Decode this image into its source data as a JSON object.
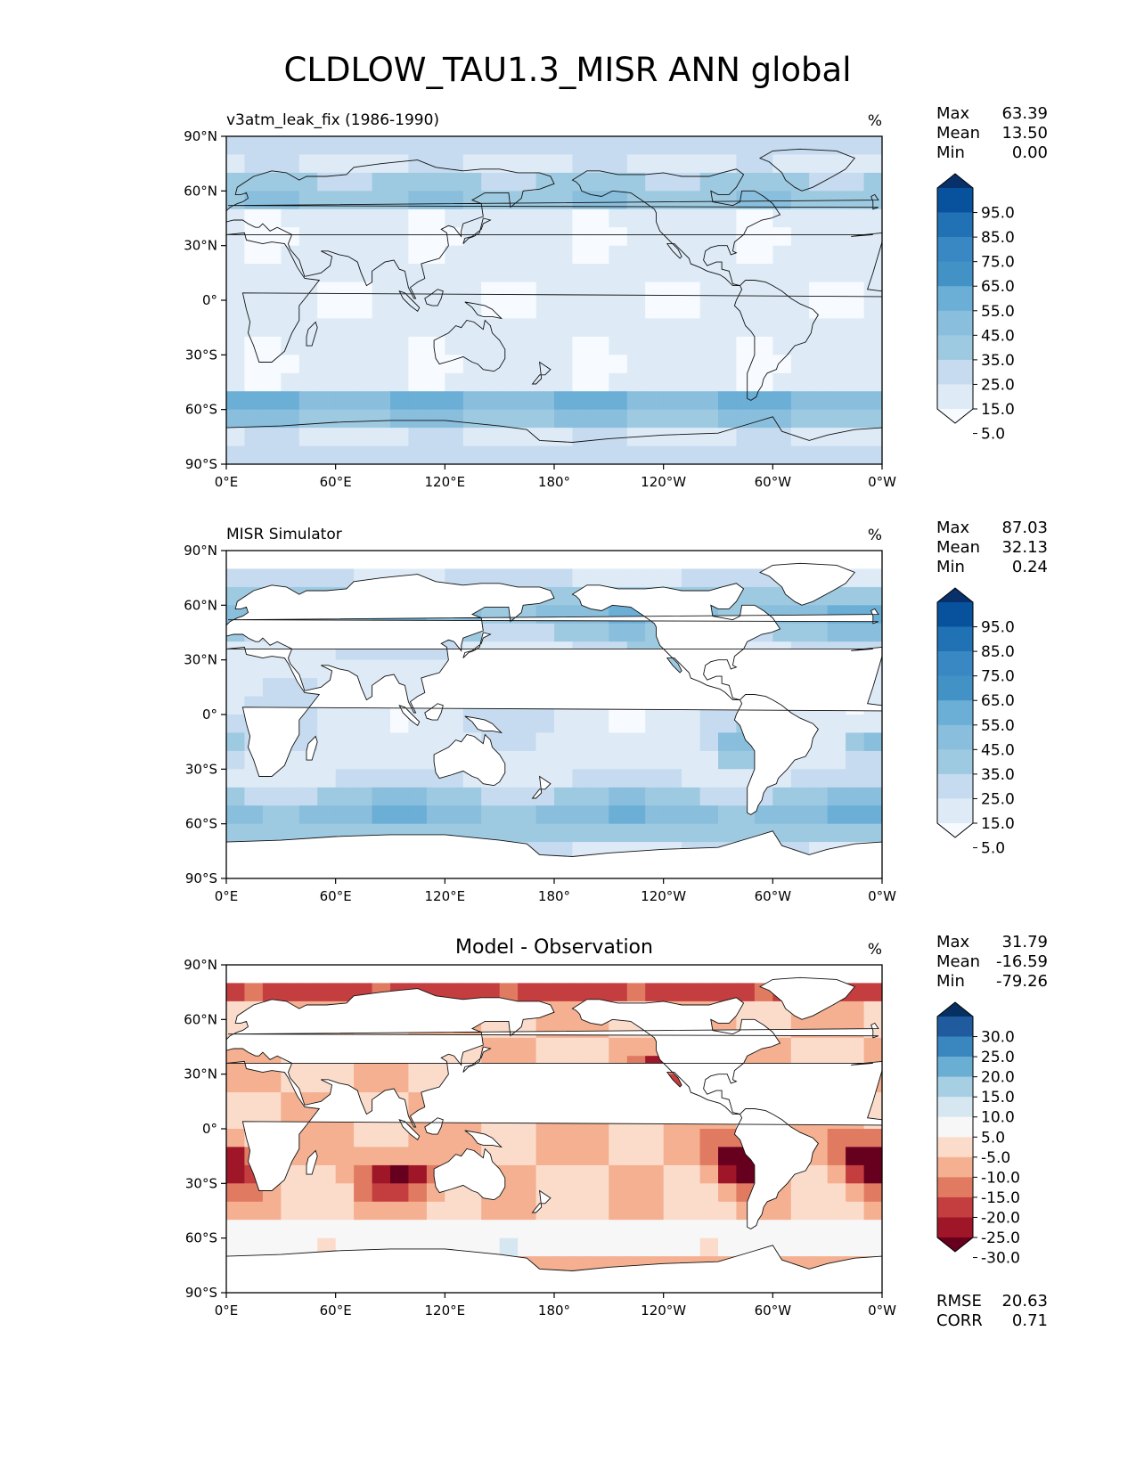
{
  "figure_title": "CLDLOW_TAU1.3_MISR ANN global",
  "chart_data": [
    {
      "type": "heatmap",
      "panel_title": "v3atm_leak_fix (1986-1990)",
      "panel_title_position": "left",
      "units": "%",
      "stats": [
        {
          "label": "Max",
          "value": "63.39"
        },
        {
          "label": "Mean",
          "value": "13.50"
        },
        {
          "label": "Min",
          "value": "0.00"
        }
      ],
      "colorbar_labels": [
        "95.0",
        "85.0",
        "75.0",
        "65.0",
        "55.0",
        "45.0",
        "35.0",
        "25.0",
        "15.0",
        "5.0"
      ],
      "colorbar_colors": [
        "#08306b",
        "#08519c",
        "#2171b5",
        "#3a88c3",
        "#4292c6",
        "#6baed6",
        "#89bedc",
        "#9ecae1",
        "#c6dbef",
        "#deebf7",
        "#f7fbff"
      ],
      "xticks": [
        "0°E",
        "60°E",
        "120°E",
        "180°",
        "120°W",
        "60°W",
        "0°W"
      ],
      "yticks": [
        "90°N",
        "60°N",
        "30°N",
        "0°",
        "30°S",
        "60°S",
        "90°S"
      ],
      "xlim": [
        0,
        360
      ],
      "ylim": [
        -90,
        90
      ],
      "data_fill": "global"
    },
    {
      "type": "heatmap",
      "panel_title": "MISR Simulator",
      "panel_title_position": "left",
      "units": "%",
      "stats": [
        {
          "label": "Max",
          "value": "87.03"
        },
        {
          "label": "Mean",
          "value": "32.13"
        },
        {
          "label": "Min",
          "value": "0.24"
        }
      ],
      "colorbar_labels": [
        "95.0",
        "85.0",
        "75.0",
        "65.0",
        "55.0",
        "45.0",
        "35.0",
        "25.0",
        "15.0",
        "5.0"
      ],
      "colorbar_colors": [
        "#08306b",
        "#08519c",
        "#2171b5",
        "#3a88c3",
        "#4292c6",
        "#6baed6",
        "#89bedc",
        "#9ecae1",
        "#c6dbef",
        "#deebf7",
        "#f7fbff"
      ],
      "xticks": [
        "0°E",
        "60°E",
        "120°E",
        "180°",
        "120°W",
        "60°W",
        "0°W"
      ],
      "yticks": [
        "90°N",
        "60°N",
        "30°N",
        "0°",
        "30°S",
        "60°S",
        "90°S"
      ],
      "xlim": [
        0,
        360
      ],
      "ylim": [
        -90,
        90
      ],
      "data_fill": "ocean"
    },
    {
      "type": "heatmap",
      "panel_title": "Model - Observation",
      "panel_title_position": "center",
      "units": "%",
      "stats": [
        {
          "label": "Max",
          "value": "31.79"
        },
        {
          "label": "Mean",
          "value": "-16.59"
        },
        {
          "label": "Min",
          "value": "-79.26"
        }
      ],
      "colorbar_labels": [
        "30.0",
        "25.0",
        "20.0",
        "15.0",
        "10.0",
        "5.0",
        "-5.0",
        "-10.0",
        "-15.0",
        "-20.0",
        "-25.0",
        "-30.0"
      ],
      "colorbar_colors": [
        "#053061",
        "#1f5b9e",
        "#3a87c0",
        "#6aaed3",
        "#a7cfe4",
        "#d6e7f1",
        "#f7f7f7",
        "#fbdccb",
        "#f4b090",
        "#e07b62",
        "#c43e40",
        "#a01629",
        "#67001f"
      ],
      "xticks": [
        "0°E",
        "60°E",
        "120°E",
        "180°",
        "120°W",
        "60°W",
        "0°W"
      ],
      "yticks": [
        "90°N",
        "60°N",
        "30°N",
        "0°",
        "30°S",
        "60°S",
        "90°S"
      ],
      "xlim": [
        0,
        360
      ],
      "ylim": [
        -90,
        90
      ],
      "data_fill": "ocean",
      "footer_stats": [
        {
          "label": "RMSE",
          "value": "20.63"
        },
        {
          "label": "CORR",
          "value": "0.71"
        }
      ]
    }
  ]
}
